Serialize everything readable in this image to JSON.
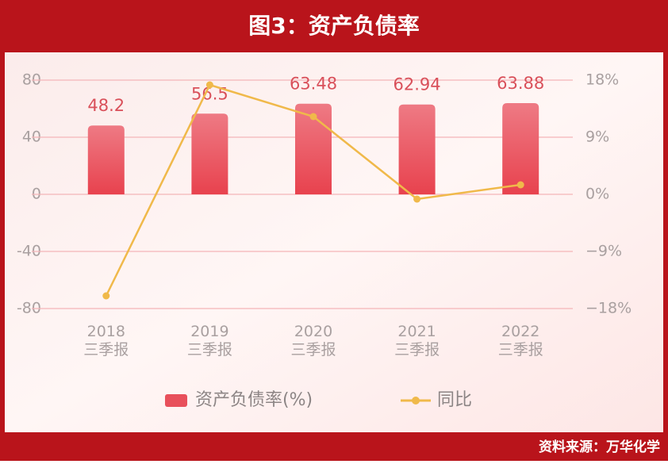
{
  "chart_data": {
    "type": "bar-line",
    "title": "图3：资产负债率",
    "source": "资料来源：万华化学",
    "categories": [
      "2018\n三季报",
      "2019\n三季报",
      "2020\n三季报",
      "2021\n三季报",
      "2022\n三季报"
    ],
    "series": [
      {
        "name": "资产负债率(%)",
        "type": "bar",
        "color": "#e8505b",
        "values": [
          48.2,
          56.5,
          63.48,
          62.94,
          63.88
        ],
        "value_labels": [
          "48.2",
          "56.5",
          "63.48",
          "62.94",
          "63.88"
        ]
      },
      {
        "name": "同比",
        "type": "line",
        "axis": "y2",
        "color": "#f0b94a",
        "values": [
          -16.0,
          17.25,
          12.25,
          -0.75,
          1.5
        ]
      }
    ],
    "ylim": [
      -80,
      80
    ],
    "yticks": [
      80,
      40,
      0,
      -40,
      -80
    ],
    "y2lim": [
      -18,
      18
    ],
    "y2ticks": [
      {
        "value": 18,
        "label": "18%"
      },
      {
        "value": 9,
        "label": "9%"
      },
      {
        "value": 0,
        "label": "0%"
      },
      {
        "value": -9,
        "label": "−9%"
      },
      {
        "value": -18,
        "label": "−18%"
      }
    ],
    "grid": true,
    "legend": "bottom"
  }
}
